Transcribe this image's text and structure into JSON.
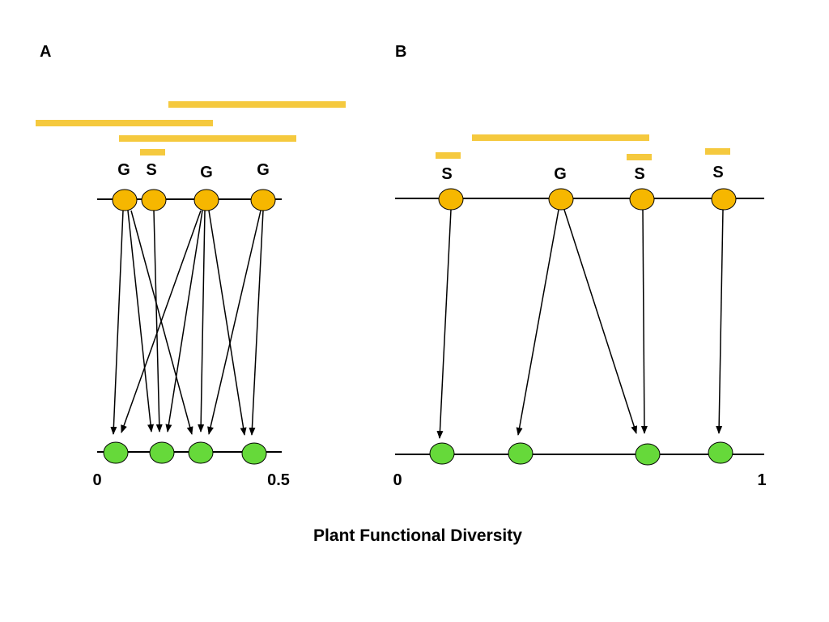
{
  "panels": [
    {
      "id": "A",
      "label": "A",
      "axis_min_label": "0",
      "axis_max_label": "0.5",
      "upper_nodes": [
        {
          "id": "a1",
          "type": "G"
        },
        {
          "id": "a2",
          "type": "S"
        },
        {
          "id": "a3",
          "type": "G"
        },
        {
          "id": "a4",
          "type": "G"
        }
      ],
      "lower_nodes": [
        {
          "id": "a_l1"
        },
        {
          "id": "a_l2"
        },
        {
          "id": "a_l3"
        },
        {
          "id": "a_l4"
        }
      ],
      "range_bars": 4,
      "links": 11
    },
    {
      "id": "B",
      "label": "B",
      "axis_min_label": "0",
      "axis_max_label": "1",
      "upper_nodes": [
        {
          "id": "b1",
          "type": "S"
        },
        {
          "id": "b2",
          "type": "G"
        },
        {
          "id": "b3",
          "type": "S"
        },
        {
          "id": "b4",
          "type": "S"
        }
      ],
      "lower_nodes": [
        {
          "id": "b_l1"
        },
        {
          "id": "b_l2"
        },
        {
          "id": "b_l3"
        },
        {
          "id": "b_l4"
        }
      ],
      "range_bars": 4,
      "links": 5
    }
  ],
  "xlabel": "Plant Functional Diversity",
  "colors": {
    "upper_node": "#F6B700",
    "lower_node": "#66D93A",
    "range_bar": "#F5C93E",
    "line": "#000000"
  }
}
